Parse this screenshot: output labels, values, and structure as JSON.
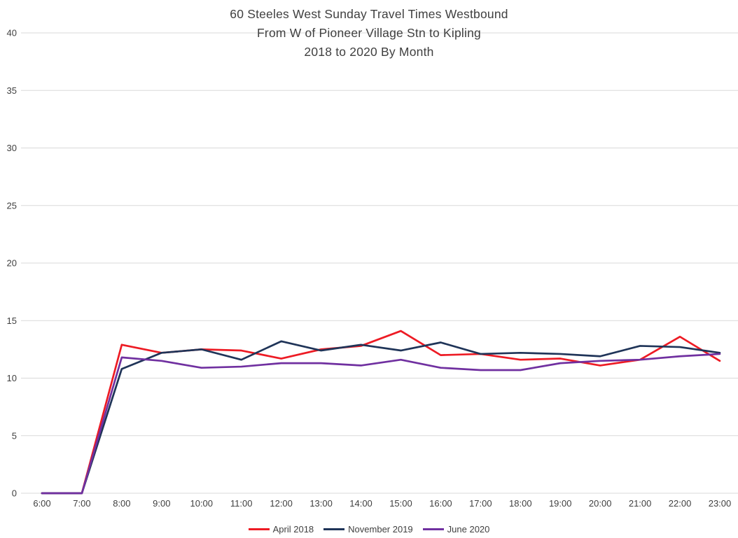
{
  "title": {
    "line1": "60 Steeles West Sunday Travel Times Westbound",
    "line2": "From W of Pioneer Village Stn to Kipling",
    "line3": "2018 to 2020 By Month"
  },
  "chart_data": {
    "type": "line",
    "title": "60 Steeles West Sunday Travel Times Westbound From W of Pioneer Village Stn to Kipling 2018 to 2020 By Month",
    "xlabel": "",
    "ylabel": "",
    "ylim": [
      0,
      40
    ],
    "y_ticks": [
      0,
      5,
      10,
      15,
      20,
      25,
      30,
      35,
      40
    ],
    "grid": true,
    "legend_position": "bottom",
    "grid_color": "#d9d9d9",
    "axis_text_color": "#404040",
    "categories": [
      "6:00",
      "7:00",
      "8:00",
      "9:00",
      "10:00",
      "11:00",
      "12:00",
      "13:00",
      "14:00",
      "15:00",
      "16:00",
      "17:00",
      "18:00",
      "19:00",
      "20:00",
      "21:00",
      "22:00",
      "23:00"
    ],
    "series": [
      {
        "name": "April 2018",
        "color": "#ed1b24",
        "values": [
          0,
          0,
          12.9,
          12.2,
          12.5,
          12.4,
          11.7,
          12.5,
          12.8,
          14.1,
          12.0,
          12.1,
          11.6,
          11.7,
          11.1,
          11.6,
          13.6,
          11.5
        ]
      },
      {
        "name": "November 2019",
        "color": "#1f3458",
        "values": [
          0,
          0,
          10.8,
          12.2,
          12.5,
          11.6,
          13.2,
          12.4,
          12.9,
          12.4,
          13.1,
          12.1,
          12.2,
          12.1,
          11.9,
          12.8,
          12.7,
          12.2
        ]
      },
      {
        "name": "June 2020",
        "color": "#7030a0",
        "values": [
          0,
          0,
          11.8,
          11.5,
          10.9,
          11.0,
          11.3,
          11.3,
          11.1,
          11.6,
          10.9,
          10.7,
          10.7,
          11.3,
          11.5,
          11.6,
          11.9,
          12.1
        ]
      }
    ]
  }
}
